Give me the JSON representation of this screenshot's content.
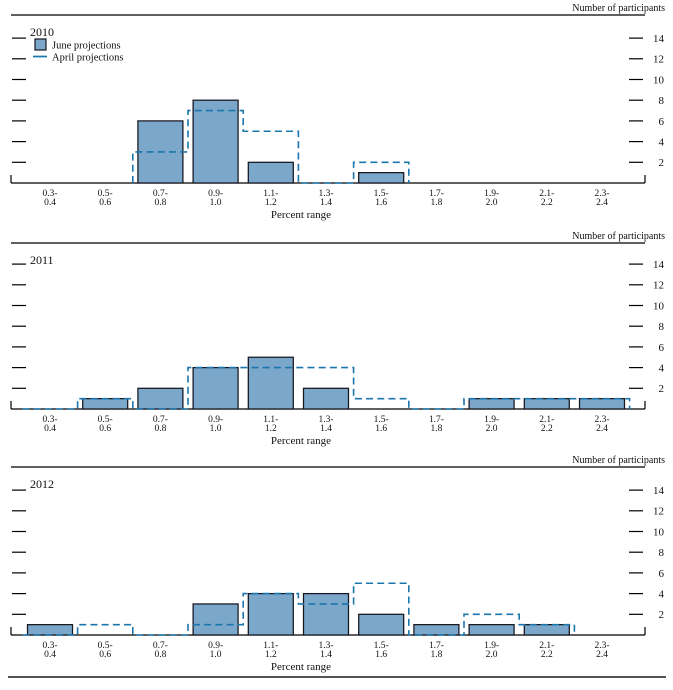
{
  "figure": {
    "right_axis_label": "Number of participants",
    "x_axis_label": "Percent range",
    "legend": [
      {
        "label": "June projections",
        "swatch": "filled-bar"
      },
      {
        "label": "April projections",
        "swatch": "dashed-line"
      }
    ],
    "y_ticks": [
      2,
      4,
      6,
      8,
      10,
      12,
      14
    ],
    "bin_labels": [
      [
        "0.3-",
        "0.4"
      ],
      [
        "0.5-",
        "0.6"
      ],
      [
        "0.7-",
        "0.8"
      ],
      [
        "0.9-",
        "1.0"
      ],
      [
        "1.1-",
        "1.2"
      ],
      [
        "1.3-",
        "1.4"
      ],
      [
        "1.5-",
        "1.6"
      ],
      [
        "1.7-",
        "1.8"
      ],
      [
        "1.9-",
        "2.0"
      ],
      [
        "2.1-",
        "2.2"
      ],
      [
        "2.3-",
        "2.4"
      ]
    ],
    "colors": {
      "bar_fill": "#7ba7ca",
      "bar_stroke": "#16161f",
      "april_line": "#1b76ad",
      "axis": "#000000",
      "text": "#111111"
    }
  },
  "chart_data": [
    {
      "type": "bar",
      "title": "2010",
      "categories": [
        "0.3-0.4",
        "0.5-0.6",
        "0.7-0.8",
        "0.9-1.0",
        "1.1-1.2",
        "1.3-1.4",
        "1.5-1.6",
        "1.7-1.8",
        "1.9-2.0",
        "2.1-2.2",
        "2.3-2.4"
      ],
      "series": [
        {
          "name": "June projections",
          "style": "bar",
          "values": [
            0,
            0,
            6,
            8,
            2,
            0,
            1,
            0,
            0,
            0,
            0
          ]
        },
        {
          "name": "April projections",
          "style": "dashed-step",
          "values": [
            0,
            0,
            3,
            7,
            5,
            0,
            2,
            0,
            0,
            0,
            0
          ],
          "outline_extent_bins": [
            2,
            6
          ]
        }
      ],
      "xlabel": "Percent range",
      "ylabel": "Number of participants",
      "ylim": [
        0,
        15.5
      ],
      "yticks": [
        2,
        4,
        6,
        8,
        10,
        12,
        14
      ],
      "legend_position": "top-left",
      "grid": false
    },
    {
      "type": "bar",
      "title": "2011",
      "categories": [
        "0.3-0.4",
        "0.5-0.6",
        "0.7-0.8",
        "0.9-1.0",
        "1.1-1.2",
        "1.3-1.4",
        "1.5-1.6",
        "1.7-1.8",
        "1.9-2.0",
        "2.1-2.2",
        "2.3-2.4"
      ],
      "series": [
        {
          "name": "June projections",
          "style": "bar",
          "values": [
            0,
            1,
            2,
            4,
            5,
            2,
            0,
            0,
            1,
            1,
            1
          ]
        },
        {
          "name": "April projections",
          "style": "dashed-step",
          "values": [
            0,
            1,
            0,
            4,
            4,
            4,
            1,
            0,
            1,
            1,
            1
          ],
          "outline_extent_bins": [
            0,
            10
          ]
        }
      ],
      "xlabel": "Percent range",
      "ylabel": "Number of participants",
      "ylim": [
        0,
        15.5
      ],
      "yticks": [
        2,
        4,
        6,
        8,
        10,
        12,
        14
      ],
      "grid": false
    },
    {
      "type": "bar",
      "title": "2012",
      "categories": [
        "0.3-0.4",
        "0.5-0.6",
        "0.7-0.8",
        "0.9-1.0",
        "1.1-1.2",
        "1.3-1.4",
        "1.5-1.6",
        "1.7-1.8",
        "1.9-2.0",
        "2.1-2.2",
        "2.3-2.4"
      ],
      "series": [
        {
          "name": "June projections",
          "style": "bar",
          "values": [
            1,
            0,
            0,
            3,
            4,
            4,
            2,
            1,
            1,
            1,
            0
          ]
        },
        {
          "name": "April projections",
          "style": "dashed-step",
          "values": [
            0,
            1,
            0,
            1,
            4,
            3,
            5,
            0,
            2,
            1,
            0
          ],
          "outline_extent_bins": [
            0,
            9
          ]
        }
      ],
      "xlabel": "Percent range",
      "ylabel": "Number of participants",
      "ylim": [
        0,
        15.5
      ],
      "yticks": [
        2,
        4,
        6,
        8,
        10,
        12,
        14
      ],
      "grid": false
    }
  ]
}
